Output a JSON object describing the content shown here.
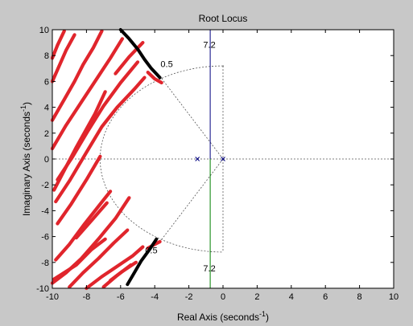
{
  "chart_data": {
    "type": "line",
    "title": "Root Locus",
    "xlabel": "Real Axis (seconds",
    "xlabel_exp": "-1",
    "xlabel_close": ")",
    "ylabel": "Imaginary Axis (seconds",
    "ylabel_exp": "-1",
    "ylabel_close": ")",
    "xlim": [
      -10,
      10
    ],
    "ylim": [
      -10,
      10
    ],
    "xticks": [
      -10,
      -8,
      -6,
      -4,
      -2,
      0,
      2,
      4,
      6,
      8,
      10
    ],
    "yticks": [
      -10,
      -8,
      -6,
      -4,
      -2,
      0,
      2,
      4,
      6,
      8,
      10
    ],
    "xtick_labels": [
      "-10",
      "-8",
      "-6",
      "-4",
      "-2",
      "0",
      "2",
      "4",
      "6",
      "8",
      "10"
    ],
    "ytick_labels": [
      "-10",
      "-8",
      "-6",
      "-4",
      "-2",
      "0",
      "2",
      "4",
      "6",
      "8",
      "10"
    ],
    "grid": "sgrid",
    "poles": [
      [
        -1.5,
        0
      ],
      [
        0,
        0
      ]
    ],
    "damping_ratio": 0.5,
    "natural_frequency": 7.2,
    "annotations": [
      {
        "text": "0.5",
        "x": -3.3,
        "y": 7.1
      },
      {
        "text": "7.2",
        "x": -0.8,
        "y": 8.6
      },
      {
        "text": "0.5",
        "x": -4.2,
        "y": -7.3
      },
      {
        "text": "7.2",
        "x": -0.8,
        "y": -8.7
      }
    ],
    "series": [
      {
        "color": "#000080",
        "x": [
          -0.75,
          -0.75
        ],
        "y": [
          0,
          10
        ]
      },
      {
        "color": "#008000",
        "x": [
          -0.75,
          -0.75
        ],
        "y": [
          0,
          -10
        ]
      }
    ],
    "strokes_black": [
      [
        [
          -6.0,
          10.0
        ],
        [
          -5.5,
          9.3
        ],
        [
          -5.0,
          8.5
        ],
        [
          -4.6,
          7.7
        ],
        [
          -4.2,
          7.0
        ],
        [
          -3.7,
          6.3
        ]
      ],
      [
        [
          -3.9,
          -6.2
        ],
        [
          -4.3,
          -7.0
        ],
        [
          -4.8,
          -7.9
        ],
        [
          -5.2,
          -8.8
        ],
        [
          -5.6,
          -9.7
        ]
      ]
    ],
    "strokes_red": [
      [
        [
          -10,
          3.0
        ],
        [
          -9.3,
          4.6
        ],
        [
          -8.7,
          6.0
        ],
        [
          -8.2,
          7.3
        ],
        [
          -7.6,
          8.6
        ],
        [
          -7.1,
          9.9
        ]
      ],
      [
        [
          -10,
          0.8
        ],
        [
          -9.2,
          2.6
        ],
        [
          -8.3,
          4.4
        ],
        [
          -7.4,
          6.2
        ],
        [
          -6.6,
          7.8
        ],
        [
          -5.9,
          9.3
        ]
      ],
      [
        [
          -9.7,
          -1.6
        ],
        [
          -8.8,
          0.2
        ],
        [
          -7.9,
          2.2
        ],
        [
          -7.0,
          4.1
        ],
        [
          -6.0,
          5.9
        ],
        [
          -5.0,
          7.5
        ]
      ],
      [
        [
          -9.8,
          -3.3
        ],
        [
          -9.0,
          -1.7
        ],
        [
          -8.1,
          0.3
        ],
        [
          -7.1,
          2.5
        ],
        [
          -6.2,
          4.0
        ],
        [
          -5.2,
          5.4
        ],
        [
          -4.6,
          6.3
        ]
      ],
      [
        [
          -10,
          6.0
        ],
        [
          -9.6,
          7.2
        ],
        [
          -9.2,
          8.4
        ],
        [
          -8.7,
          9.6
        ]
      ],
      [
        [
          -10,
          7.8
        ],
        [
          -9.7,
          8.8
        ],
        [
          -9.3,
          9.9
        ]
      ],
      [
        [
          -9.7,
          -5.0
        ],
        [
          -8.9,
          -3.5
        ],
        [
          -8.0,
          -1.6
        ],
        [
          -7.2,
          0.2
        ]
      ],
      [
        [
          -6.3,
          6.6
        ],
        [
          -5.5,
          7.9
        ],
        [
          -4.7,
          9.0
        ]
      ],
      [
        [
          -4.4,
          6.7
        ],
        [
          -4.0,
          6.2
        ],
        [
          -3.6,
          5.9
        ]
      ],
      [
        [
          -9.9,
          -2.4
        ],
        [
          -8.6,
          0.9
        ],
        [
          -7.5,
          3.5
        ],
        [
          -6.9,
          5.2
        ]
      ],
      [
        [
          -10,
          -9.6
        ],
        [
          -9.2,
          -8.8
        ],
        [
          -8.3,
          -7.7
        ],
        [
          -7.3,
          -6.2
        ],
        [
          -6.3,
          -4.6
        ],
        [
          -5.5,
          -3.0
        ]
      ],
      [
        [
          -9.8,
          -7.8
        ],
        [
          -9.0,
          -6.6
        ],
        [
          -8.1,
          -5.0
        ],
        [
          -7.2,
          -3.5
        ],
        [
          -6.6,
          -2.5
        ]
      ],
      [
        [
          -9.0,
          -9.9
        ],
        [
          -8.2,
          -8.8
        ],
        [
          -7.3,
          -7.7
        ],
        [
          -6.4,
          -6.5
        ],
        [
          -5.6,
          -5.5
        ]
      ],
      [
        [
          -8.0,
          -10.0
        ],
        [
          -7.1,
          -9.1
        ],
        [
          -6.2,
          -8.3
        ],
        [
          -5.3,
          -7.5
        ],
        [
          -4.7,
          -6.8
        ]
      ],
      [
        [
          -7.0,
          -9.9
        ],
        [
          -6.2,
          -9.0
        ],
        [
          -5.4,
          -8.2
        ]
      ],
      [
        [
          -6.6,
          -9.4
        ],
        [
          -5.9,
          -8.7
        ],
        [
          -5.1,
          -8.0
        ]
      ],
      [
        [
          -4.4,
          -6.9
        ],
        [
          -4.0,
          -6.6
        ],
        [
          -3.7,
          -6.4
        ]
      ],
      [
        [
          -8.6,
          -6.1
        ],
        [
          -7.6,
          -4.6
        ],
        [
          -6.8,
          -3.4
        ]
      ],
      [
        [
          -9.9,
          -9.3
        ],
        [
          -8.6,
          -8.2
        ],
        [
          -7.7,
          -7.0
        ],
        [
          -6.9,
          -6.2
        ]
      ]
    ]
  }
}
